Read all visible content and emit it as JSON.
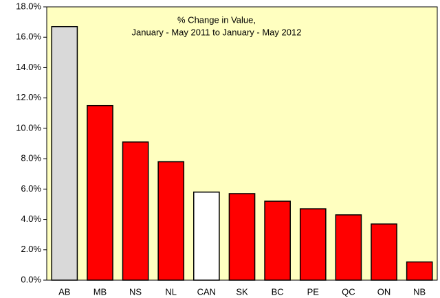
{
  "chart_data": {
    "type": "bar",
    "title": "% Change in Value,",
    "subtitle": "January - May 2011 to January - May 2012",
    "categories": [
      "AB",
      "MB",
      "NS",
      "NL",
      "CAN",
      "SK",
      "BC",
      "PE",
      "QC",
      "ON",
      "NB"
    ],
    "values": [
      16.7,
      11.5,
      9.1,
      7.8,
      5.8,
      5.7,
      5.2,
      4.7,
      4.3,
      3.7,
      1.2
    ],
    "colors": [
      "#d9d9d9",
      "#ff0000",
      "#ff0000",
      "#ff0000",
      "#ffffff",
      "#ff0000",
      "#ff0000",
      "#ff0000",
      "#ff0000",
      "#ff0000",
      "#ff0000"
    ],
    "ylim": [
      0,
      18
    ],
    "yticks": [
      {
        "value": 0,
        "label": "0.0%"
      },
      {
        "value": 2,
        "label": "2.0%"
      },
      {
        "value": 4,
        "label": "4.0%"
      },
      {
        "value": 6,
        "label": "6.0%"
      },
      {
        "value": 8,
        "label": "8.0%"
      },
      {
        "value": 10,
        "label": "10.0%"
      },
      {
        "value": 12,
        "label": "12.0%"
      },
      {
        "value": 14,
        "label": "14.0%"
      },
      {
        "value": 16,
        "label": "16.0%"
      },
      {
        "value": 18,
        "label": "18.0%"
      }
    ],
    "plot_background": "#ffffc0"
  }
}
